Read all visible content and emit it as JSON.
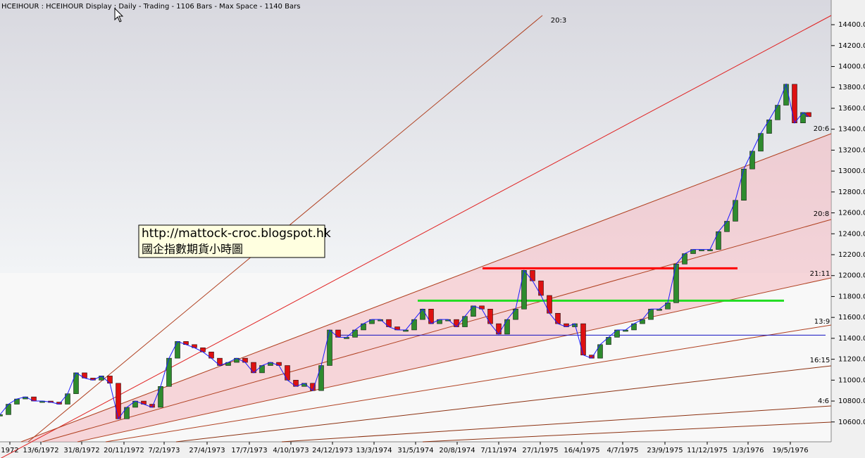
{
  "chart_data": {
    "type": "candlestick",
    "title": "HCEIHOUR : HCEIHOUR Display :  Daily  - Trading - 1106 Bars -  Max Space - 1140 Bars",
    "annotations": [
      "http://mattock-croc.blogspot.hk",
      "國企指數期貨小時圖"
    ],
    "fan_labels": [
      "20:3",
      "20:6",
      "20:8",
      "21:11",
      "13:9",
      "16:15",
      "4:6"
    ],
    "x": [
      0,
      12,
      24,
      36,
      48,
      60,
      72,
      84,
      96,
      108,
      120,
      132,
      144,
      156,
      168,
      180,
      192,
      204,
      216,
      228,
      240,
      252,
      264,
      276,
      288,
      300,
      312,
      324,
      336,
      348,
      360,
      372,
      384,
      396,
      408,
      420,
      432,
      444,
      456,
      468,
      480,
      492,
      504,
      516,
      528,
      540,
      552,
      564,
      576,
      588,
      600,
      612,
      624,
      636,
      648,
      660,
      672,
      684,
      696,
      708,
      720,
      732,
      744,
      756,
      768,
      780,
      792,
      804,
      816,
      828,
      840,
      852,
      864,
      876,
      888,
      900,
      912,
      924,
      936,
      948,
      960,
      972,
      984,
      996,
      1008,
      1020,
      1032,
      1044,
      1056,
      1068,
      1080,
      1092,
      1104,
      1116,
      1128,
      1140,
      1148
    ],
    "values": [
      10670,
      10770,
      10820,
      10840,
      10800,
      10800,
      10790,
      10770,
      10870,
      11070,
      11020,
      11000,
      11040,
      10970,
      10630,
      10740,
      10800,
      10770,
      10740,
      10940,
      11210,
      11370,
      11340,
      11310,
      11270,
      11210,
      11140,
      11170,
      11210,
      11170,
      11070,
      11140,
      11170,
      11140,
      11000,
      10940,
      10970,
      10900,
      11140,
      11480,
      11410,
      11410,
      11480,
      11540,
      11580,
      11580,
      11510,
      11480,
      11480,
      11580,
      11680,
      11540,
      11580,
      11580,
      11510,
      11610,
      11710,
      11680,
      11540,
      11440,
      11580,
      11680,
      12050,
      11950,
      11810,
      11640,
      11540,
      11510,
      11540,
      11240,
      11210,
      11340,
      11410,
      11480,
      11480,
      11540,
      11580,
      11680,
      11680,
      11740,
      12110,
      12210,
      12250,
      12250,
      12250,
      12420,
      12520,
      12720,
      13020,
      13190,
      13360,
      13490,
      13630,
      13830,
      13460,
      13560,
      13520
    ],
    "up_color": "#2e8b2e",
    "down_color": "#dd1111",
    "line_color": "#1a1aff",
    "levels": [
      {
        "value": 12070,
        "color": "#ff0000"
      },
      {
        "value": 11760,
        "color": "#22dd22"
      },
      {
        "value": 11430,
        "color": "#1010c0"
      }
    ],
    "xlim": [
      0,
      1180
    ],
    "ylim": [
      10410,
      14515
    ],
    "xticks": [
      {
        "value": 14,
        "label": "1972"
      },
      {
        "value": 58,
        "label": "13/6/1972"
      },
      {
        "value": 116,
        "label": "31/8/1972"
      },
      {
        "value": 176,
        "label": "20/11/1972"
      },
      {
        "value": 233,
        "label": "7/2/1973"
      },
      {
        "value": 294,
        "label": "27/4/1973"
      },
      {
        "value": 354,
        "label": "17/7/1973"
      },
      {
        "value": 413,
        "label": "4/10/1973"
      },
      {
        "value": 472,
        "label": "24/12/1973"
      },
      {
        "value": 531,
        "label": "13/3/1974"
      },
      {
        "value": 590,
        "label": "31/5/1974"
      },
      {
        "value": 649,
        "label": "20/8/1974"
      },
      {
        "value": 708,
        "label": "7/11/1974"
      },
      {
        "value": 767,
        "label": "27/1/1975"
      },
      {
        "value": 826,
        "label": "16/4/1975"
      },
      {
        "value": 884,
        "label": "4/7/1975"
      },
      {
        "value": 944,
        "label": "23/9/1975"
      },
      {
        "value": 1004,
        "label": "11/12/1975"
      },
      {
        "value": 1062,
        "label": "1/3/1976"
      },
      {
        "value": 1122,
        "label": "19/5/1976"
      }
    ],
    "yticks": [
      {
        "value": 10600,
        "label": "10600.0"
      },
      {
        "value": 10800,
        "label": "10800.0"
      },
      {
        "value": 11000,
        "label": "11000.0"
      },
      {
        "value": 11200,
        "label": "11200.0"
      },
      {
        "value": 11400,
        "label": "11400.0"
      },
      {
        "value": 11600,
        "label": "11600.0"
      },
      {
        "value": 11800,
        "label": "11800.0"
      },
      {
        "value": 12000,
        "label": "12000.0"
      },
      {
        "value": 12200,
        "label": "12200.0"
      },
      {
        "value": 12400,
        "label": "12400.0"
      },
      {
        "value": 12600,
        "label": "12600.0"
      },
      {
        "value": 12800,
        "label": "12800.0"
      },
      {
        "value": 13000,
        "label": "13000.0"
      },
      {
        "value": 13200,
        "label": "13200.0"
      },
      {
        "value": 13400,
        "label": "13400.0"
      },
      {
        "value": 13600,
        "label": "13600.0"
      },
      {
        "value": 13800,
        "label": "13800.0"
      },
      {
        "value": 14000,
        "label": "14000.0"
      },
      {
        "value": 14200,
        "label": "14200.0"
      },
      {
        "value": 14400,
        "label": "14400.0"
      }
    ]
  }
}
